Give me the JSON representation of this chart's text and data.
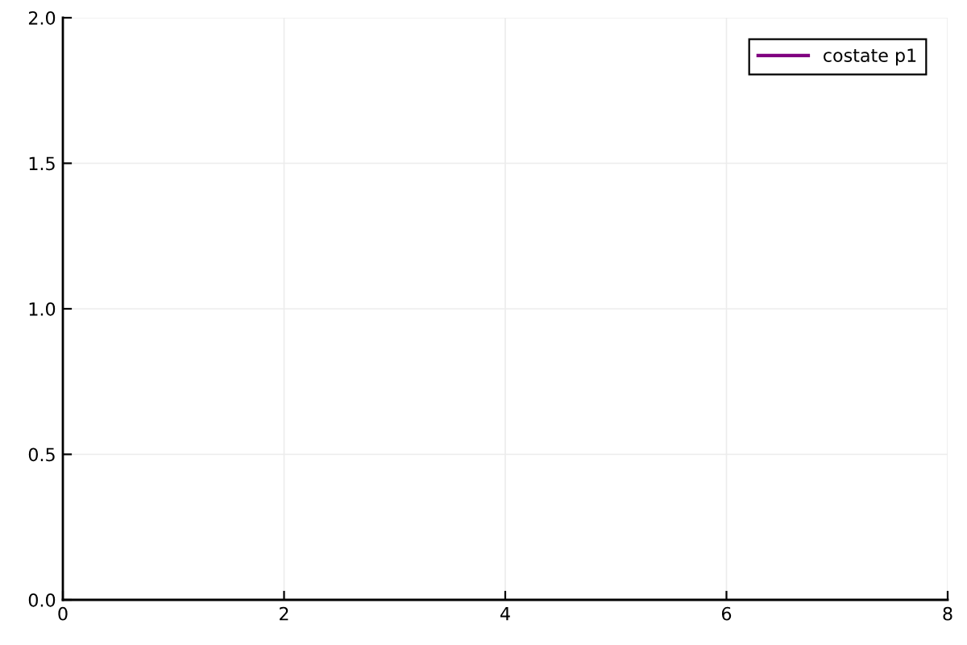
{
  "chart_data": {
    "type": "line",
    "categories": [
      "0",
      "2",
      "4",
      "6",
      "8"
    ],
    "series": [
      {
        "name": "costate p1",
        "color": "#800080",
        "values": [
          null,
          null,
          null,
          null,
          null
        ]
      }
    ],
    "ylim": [
      0,
      2
    ],
    "yticks": [
      {
        "value": 0,
        "label": "0.0"
      },
      {
        "value": 0.5,
        "label": "0.5"
      },
      {
        "value": 1,
        "label": "1.0"
      },
      {
        "value": 1.5,
        "label": "1.5"
      },
      {
        "value": 2,
        "label": "2.0"
      }
    ],
    "grid": true,
    "legend": "top right",
    "line_style": "solid",
    "marker": "none"
  }
}
